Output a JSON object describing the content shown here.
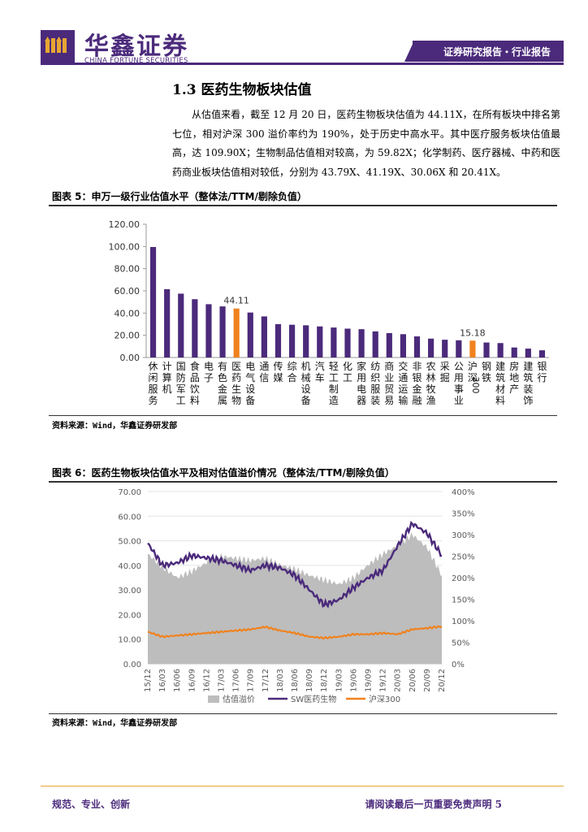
{
  "header": {
    "brand_cn": "华鑫证券",
    "brand_en": "CHINA FORTUNE SECURITIES",
    "tag": "证券研究报告・行业报告",
    "logo_icon": "fortune-logo-icon",
    "brand_color": "#4b2a7b"
  },
  "section": {
    "title": "1.3 医药生物板块估值",
    "paragraph": "从估值来看，截至 12 月 20 日，医药生物板块估值为 44.11X，在所有板块中排名第七位，相对沪深 300 溢价率约为 190%，处于历史中高水平。其中医疗服务板块估值最高，达 109.90X；生物制品估值相对较高，为 59.82X；化学制药、医疗器械、中药和医药商业板块估值相对较低，分别为 43.79X、41.19X、30.06X 和 20.41X。"
  },
  "figure5": {
    "title": "图表 5：申万一级行业估值水平（整体法/TTM/剔除负值）",
    "source": "资料来源：Wind，华鑫证券研发部"
  },
  "figure6": {
    "title": "图表 6：医药生物板块估值水平及相对估值溢价情况（整体法/TTM/剔除负值）",
    "source": "资料来源：Wind，华鑫证券研发部"
  },
  "footer": {
    "left": "规范、专业、创新",
    "right": "请阅读最后一页重要免责声明 5",
    "line_color": "#e8a632"
  },
  "chart_data": [
    {
      "type": "bar",
      "categories": [
        "休闲服务",
        "计算机",
        "国防军工",
        "食品饮料",
        "电子",
        "有色金属",
        "医药生物",
        "电气设备",
        "通信",
        "传媒",
        "综合",
        "机械设备",
        "汽车",
        "轻工制造",
        "化工",
        "家用电器",
        "纺织服装",
        "商业贸易",
        "交通运输",
        "非银金融",
        "农林牧渔",
        "采掘",
        "公用事业",
        "沪深300",
        "钢铁",
        "建筑材料",
        "房地产",
        "建筑装饰",
        "银行"
      ],
      "values": [
        99.5,
        61.5,
        57.5,
        52.5,
        48.0,
        46.0,
        44.11,
        40.5,
        37.0,
        30.0,
        29.5,
        29.0,
        28.0,
        27.0,
        26.0,
        25.5,
        23.5,
        22.0,
        21.0,
        19.0,
        17.0,
        16.0,
        15.5,
        15.18,
        13.5,
        13.0,
        9.0,
        8.0,
        6.5
      ],
      "highlight_color": "#f0821e",
      "bar_color": "#4b2a7b",
      "highlight_indices": [
        6,
        23
      ],
      "data_labels": [
        {
          "index": 6,
          "text": "44.11"
        },
        {
          "index": 23,
          "text": "15.18"
        }
      ],
      "y_ticks": [
        "0.00",
        "20.00",
        "40.00",
        "60.00",
        "80.00",
        "100.00",
        "120.00"
      ],
      "ylim": [
        0,
        120
      ],
      "grid": false
    },
    {
      "type": "area",
      "x_ticks": [
        "15/12",
        "16/03",
        "16/06",
        "16/09",
        "16/12",
        "17/03",
        "17/06",
        "17/09",
        "17/12",
        "18/03",
        "18/06",
        "18/09",
        "18/12",
        "19/03",
        "19/06",
        "19/09",
        "19/12",
        "20/03",
        "20/06",
        "20/09",
        "20/12"
      ],
      "y_left_ticks": [
        "0.00",
        "10.00",
        "20.00",
        "30.00",
        "40.00",
        "50.00",
        "60.00",
        "70.00"
      ],
      "y_right_ticks": [
        "0%",
        "50%",
        "100%",
        "150%",
        "200%",
        "250%",
        "300%",
        "350%",
        "400%"
      ],
      "ylim_left": [
        0,
        70
      ],
      "ylim_right": [
        0,
        400
      ],
      "legend": [
        "估值溢价",
        "SW医药生物",
        "沪深300"
      ],
      "legend_position": "bottom",
      "series_colors": [
        "#bdbdbd",
        "#4b2a7b",
        "#f0821e"
      ],
      "series": [
        {
          "name": "估值溢价",
          "axis": "right",
          "values": [
            255,
            225,
            200,
            215,
            235,
            250,
            245,
            240,
            245,
            230,
            220,
            205,
            195,
            185,
            200,
            230,
            255,
            275,
            300,
            270,
            205
          ]
        },
        {
          "name": "SW医药生物",
          "axis": "left",
          "values": [
            49,
            40,
            41,
            44,
            43,
            42,
            40,
            38,
            40,
            39,
            36,
            30,
            24,
            26,
            31,
            35,
            38,
            48,
            57,
            53,
            44
          ]
        },
        {
          "name": "沪深300",
          "axis": "left",
          "values": [
            13,
            11,
            11.5,
            12,
            12.5,
            13,
            13.5,
            14,
            15,
            13.5,
            12.5,
            11,
            10.5,
            11,
            12,
            12,
            12.5,
            12,
            14,
            14.5,
            15.2
          ]
        }
      ],
      "grid": true
    }
  ]
}
